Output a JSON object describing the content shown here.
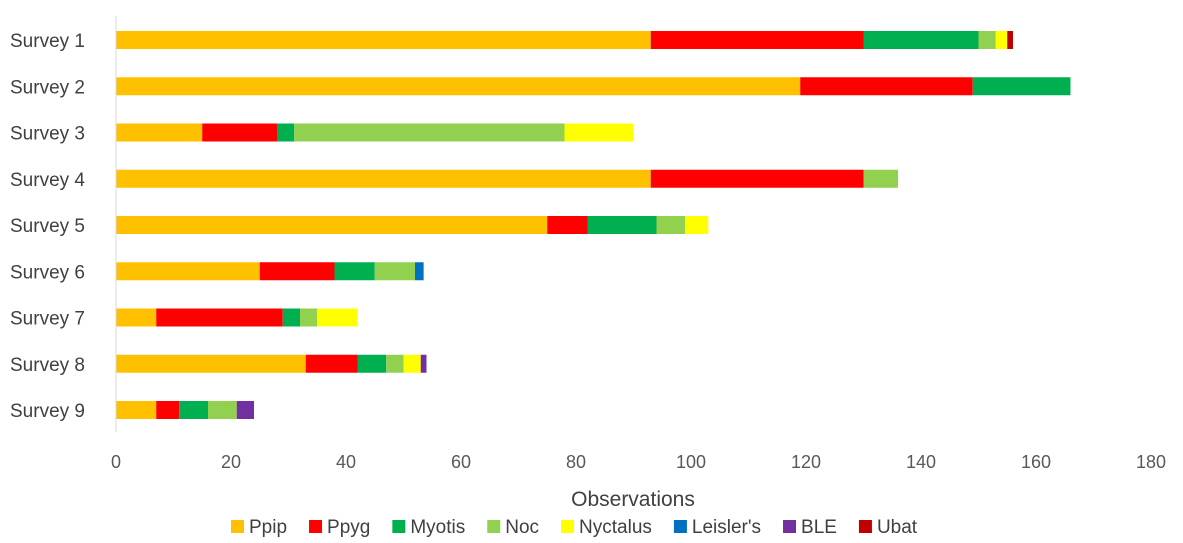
{
  "chart_data": {
    "type": "bar",
    "orientation": "horizontal",
    "stacked": true,
    "title": "",
    "xlabel": "Observations",
    "ylabel": "",
    "xlim": [
      0,
      180
    ],
    "x_ticks": [
      0,
      20,
      40,
      60,
      80,
      100,
      120,
      140,
      160,
      180
    ],
    "grid": false,
    "legend_position": "bottom",
    "categories": [
      "Survey 1",
      "Survey 2",
      "Survey 3",
      "Survey 4",
      "Survey 5",
      "Survey 6",
      "Survey 7",
      "Survey 8",
      "Survey 9"
    ],
    "series": [
      {
        "name": "Ppip",
        "color": "#FFC000",
        "values": [
          93,
          119,
          15,
          93,
          75,
          25,
          7,
          33,
          7
        ]
      },
      {
        "name": "Ppyg",
        "color": "#FF0000",
        "values": [
          37,
          30,
          13,
          37,
          7,
          13,
          22,
          9,
          4
        ]
      },
      {
        "name": "Myotis",
        "color": "#00B050",
        "values": [
          20,
          17,
          3,
          0,
          12,
          7,
          3,
          5,
          5
        ]
      },
      {
        "name": "Noc",
        "color": "#92D050",
        "values": [
          3,
          0,
          47,
          6,
          5,
          7,
          3,
          3,
          5
        ]
      },
      {
        "name": "Nyctalus",
        "color": "#FFFF00",
        "values": [
          2,
          0,
          12,
          0,
          4,
          0,
          7,
          3,
          0
        ]
      },
      {
        "name": "Leisler's",
        "color": "#0070C0",
        "values": [
          0,
          0,
          0,
          0,
          0,
          1.5,
          0,
          0,
          0
        ]
      },
      {
        "name": "BLE",
        "color": "#7030A0",
        "values": [
          0,
          0,
          0,
          0,
          0,
          0,
          0,
          1,
          3
        ]
      },
      {
        "name": "Ubat",
        "color": "#C00000",
        "values": [
          1,
          0,
          0,
          0,
          0,
          0,
          0,
          0,
          0
        ]
      }
    ]
  }
}
